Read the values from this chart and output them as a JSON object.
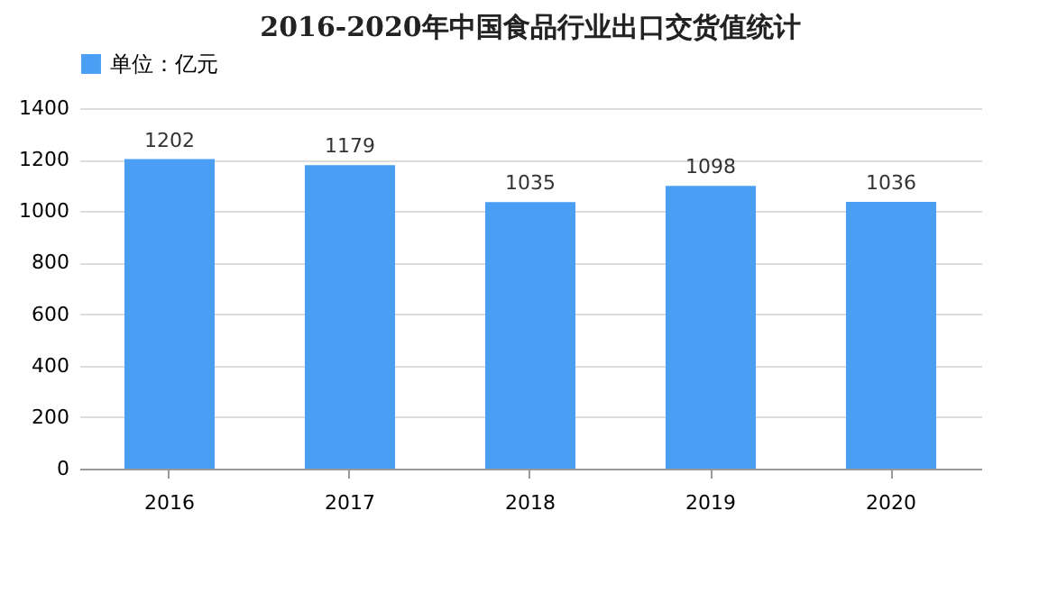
{
  "chart_data": {
    "type": "bar",
    "title": "2016-2020年中国食品行业出口交货值统计",
    "categories": [
      "2016",
      "2017",
      "2018",
      "2019",
      "2020"
    ],
    "series": [
      {
        "name": "单位：亿元",
        "color": "#4a9ff5",
        "values": [
          1202,
          1179,
          1035,
          1098,
          1036
        ]
      }
    ],
    "ylim": [
      0,
      1400
    ],
    "yticks": [
      0,
      200,
      400,
      600,
      800,
      1000,
      1200,
      1400
    ],
    "grid": "y",
    "legend": "top",
    "data_labels": true
  }
}
